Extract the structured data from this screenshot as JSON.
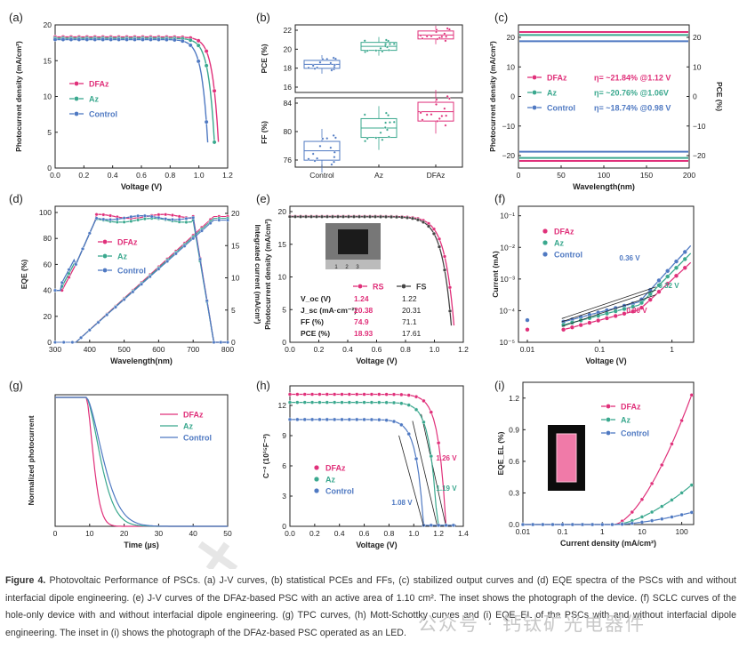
{
  "colors": {
    "dfaz": "#e0307a",
    "az": "#3aa88e",
    "control": "#4f79c2",
    "fs": "#444444",
    "rs": "#e0307a"
  },
  "panels": {
    "a": {
      "tag": "(a)",
      "xlabel": "Voltage (V)",
      "ylabel": "Photocurrent density (mA/cm²)",
      "legend": [
        "DFAz",
        "Az",
        "Control"
      ],
      "xticks": [
        "0.0",
        "0.2",
        "0.4",
        "0.6",
        "0.8",
        "1.0",
        "1.2"
      ],
      "yticks": [
        "0",
        "5",
        "10",
        "15",
        "20"
      ]
    },
    "b": {
      "tag": "(b)",
      "ylabel_top": "PCE (%)",
      "ylabel_bottom": "FF (%)",
      "yticks_top": [
        "16",
        "18",
        "20",
        "22"
      ],
      "yticks_bottom": [
        "76",
        "80",
        "84"
      ],
      "categories": [
        "Control",
        "Az",
        "DFAz"
      ]
    },
    "c": {
      "tag": "(c)",
      "xlabel": "Wavelength(nm)",
      "ylabel": "Photocurrent density (mA/cm²)",
      "ylabel_right": "PCE (%)",
      "xticks": [
        "0",
        "50",
        "100",
        "150",
        "200"
      ],
      "yticks": [
        "20",
        "10",
        "0",
        "−10",
        "−20"
      ],
      "legend": [
        {
          "name": "DFAz",
          "eta": "η= ~21.84% @1.12 V"
        },
        {
          "name": "Az",
          "eta": "η= ~20.76% @1.06V"
        },
        {
          "name": "Control",
          "eta": "η= ~18.74% @0.98 V"
        }
      ]
    },
    "d": {
      "tag": "(d)",
      "xlabel": "Wavelength(nm)",
      "ylabel": "EQE (%)",
      "ylabel_right": "Integrated current (mA/cm²)",
      "xticks": [
        "300",
        "400",
        "500",
        "600",
        "700",
        "800"
      ],
      "yticks": [
        "0",
        "20",
        "40",
        "60",
        "80",
        "100"
      ],
      "yticks_right": [
        "0",
        "5",
        "10",
        "15",
        "20"
      ],
      "legend": [
        "DFAz",
        "Az",
        "Control"
      ]
    },
    "e": {
      "tag": "(e)",
      "xlabel": "Voltage (V)",
      "ylabel": "Photocurrent density (mA/cm²)",
      "xticks": [
        "0.0",
        "0.2",
        "0.4",
        "0.6",
        "0.8",
        "1.0",
        "1.2"
      ],
      "yticks": [
        "0",
        "5",
        "10",
        "15",
        "20"
      ],
      "legend": [
        "RS",
        "FS"
      ],
      "table": [
        [
          "V_oc (V)",
          "1.24",
          "1.22"
        ],
        [
          "J_sc (mA·cm⁻²)",
          "20.38",
          "20.31"
        ],
        [
          "FF (%)",
          "74.9",
          "71.1"
        ],
        [
          "PCE (%)",
          "18.93",
          "17.61"
        ]
      ]
    },
    "f": {
      "tag": "(f)",
      "xlabel": "Voltage (V)",
      "ylabel": "Current (mA)",
      "xticks": [
        "0.01",
        "0.1",
        "1"
      ],
      "yticks": [
        "10⁻⁵",
        "10⁻⁴",
        "10⁻³",
        "10⁻²",
        "10⁻¹"
      ],
      "legend": [
        "DFAz",
        "Az",
        "Control"
      ],
      "annotations": [
        "0.36 V",
        "0.32 V",
        "0.30 V"
      ]
    },
    "g": {
      "tag": "(g)",
      "xlabel": "Time (µs)",
      "ylabel": "Normalized photocurrent",
      "xticks": [
        "0",
        "10",
        "20",
        "30",
        "40",
        "50"
      ],
      "legend": [
        "DFAz",
        "Az",
        "Control"
      ]
    },
    "h": {
      "tag": "(h)",
      "xlabel": "Voltage (V)",
      "ylabel": "C⁻² (10¹⁵F⁻²)",
      "xticks": [
        "0.0",
        "0.2",
        "0.4",
        "0.6",
        "0.8",
        "1.0",
        "1.2",
        "1.4"
      ],
      "yticks": [
        "0",
        "3",
        "6",
        "9",
        "12"
      ],
      "legend": [
        "DFAz",
        "Az",
        "Control"
      ],
      "annotations": [
        "1.26 V",
        "1.19 V",
        "1.08 V"
      ]
    },
    "i": {
      "tag": "(i)",
      "xlabel": "Current density (mA/cm²)",
      "ylabel": "EQE_EL (%)",
      "xticks": [
        "0.01",
        "0.1",
        "1",
        "10",
        "100"
      ],
      "yticks": [
        "0.0",
        "0.3",
        "0.6",
        "0.9",
        "1.2"
      ],
      "legend": [
        "DFAz",
        "Az",
        "Control"
      ]
    }
  },
  "caption": {
    "head": "Figure 4.",
    "text": " Photovoltaic Performance of PSCs. (a) J-V curves, (b) statistical PCEs and FFs, (c) stabilized output curves and (d) EQE spectra of the PSCs with and without interfacial dipole engineering. (e) J-V curves of the DFAz-based PSC with an active area of 1.10 cm². The inset shows the photograph of the device. (f) SCLC curves of the hole-only device with and without interfacial dipole engineering. (g) TPC curves, (h) Mott-Schottky curves and (i) EQE_EL of the PSCs with and without interfacial dipole engineering. The inset in (i) shows the photograph of the DFAz-based PSC operated as an LED."
  },
  "watermark": "公众号 · 钙钛矿光电器件"
}
